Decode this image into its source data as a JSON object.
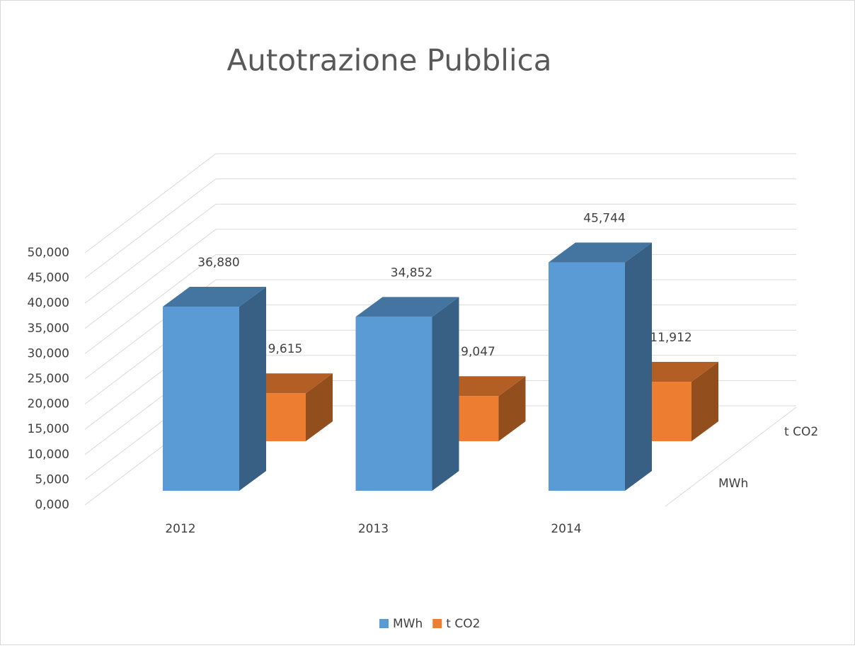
{
  "chart_data": {
    "type": "bar3d",
    "title": "Autotrazione Pubblica",
    "categories": [
      "2012",
      "2013",
      "2014"
    ],
    "series": [
      {
        "name": "MWh",
        "color": "#5b9bd5",
        "values": [
          36.88,
          34.852,
          45.744
        ],
        "value_labels": [
          "36,880",
          "34,852",
          "45,744"
        ]
      },
      {
        "name": "t CO2",
        "color": "#ed7d31",
        "values": [
          9.615,
          9.047,
          11.912
        ],
        "value_labels": [
          "9,615",
          "9,047",
          "11,912"
        ]
      }
    ],
    "ylim": [
      0,
      50
    ],
    "yticks": [
      {
        "value": 0,
        "label": "0,000"
      },
      {
        "value": 5,
        "label": "5,000"
      },
      {
        "value": 10,
        "label": "10,000"
      },
      {
        "value": 15,
        "label": "15,000"
      },
      {
        "value": 20,
        "label": "20,000"
      },
      {
        "value": 25,
        "label": "25,000"
      },
      {
        "value": 30,
        "label": "30,000"
      },
      {
        "value": 35,
        "label": "35,000"
      },
      {
        "value": 40,
        "label": "40,000"
      },
      {
        "value": 45,
        "label": "45,000"
      },
      {
        "value": 50,
        "label": "50,000"
      }
    ],
    "grid": true,
    "legend": "bottom"
  }
}
